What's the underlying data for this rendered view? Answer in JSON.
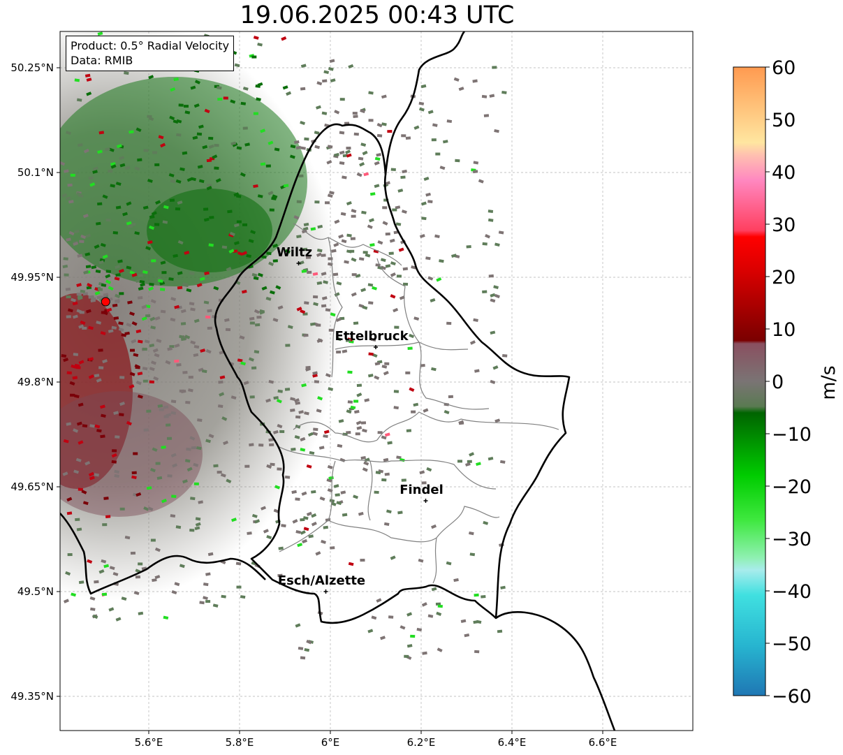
{
  "title": "19.06.2025 00:43 UTC",
  "info": {
    "product": "Product: 0.5° Radial Velocity",
    "data_source": "Data: RMIB"
  },
  "axes": {
    "lat_ticks": [
      "50.25°N",
      "50.1°N",
      "49.95°N",
      "49.8°N",
      "49.65°N",
      "49.5°N",
      "49.35°N"
    ],
    "lon_ticks": [
      "5.6°E",
      "5.8°E",
      "6°E",
      "6.2°E",
      "6.4°E",
      "6.6°E"
    ]
  },
  "cities": [
    {
      "name": "Wiltz",
      "lon": 5.93,
      "lat": 49.97
    },
    {
      "name": "Ettelbruck",
      "lon": 6.1,
      "lat": 49.85
    },
    {
      "name": "Findel",
      "lon": 6.21,
      "lat": 49.63
    },
    {
      "name": "Esch/Alzette",
      "lon": 5.99,
      "lat": 49.5
    }
  ],
  "radar_site": {
    "lon": 5.505,
    "lat": 49.915
  },
  "colorbar": {
    "unit": "m/s",
    "min": -60,
    "max": 60,
    "ticks": [
      "60",
      "50",
      "40",
      "30",
      "20",
      "10",
      "0",
      "−10",
      "−20",
      "−30",
      "−40",
      "−50",
      "−60"
    ]
  },
  "colors": {
    "border": "#000000",
    "canton_border": "#808080",
    "radar_site": "#ff0000"
  }
}
